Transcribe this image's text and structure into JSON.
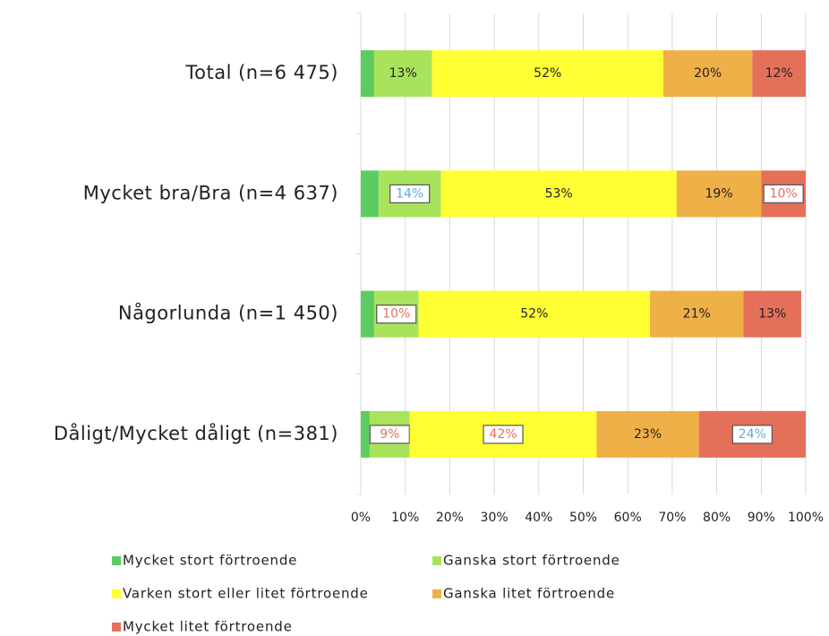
{
  "chart_data": {
    "type": "stacked_barh",
    "categories": [
      "Total (n=6 475)",
      "Mycket bra/Bra (n=4 637)",
      "Någorlunda (n=1 450)",
      "Dåligt/Mycket dåligt (n=381)"
    ],
    "series": [
      {
        "name": "Mycket stort förtroende",
        "color": "#5ccb61",
        "values": [
          3,
          4,
          3,
          2
        ]
      },
      {
        "name": "Ganska stort förtroende",
        "color": "#a9e35b",
        "values": [
          13,
          14,
          10,
          9
        ],
        "value_labels": [
          "13%",
          "14%",
          "10%",
          "9%"
        ],
        "label_colors": [
          null,
          "#5aaed8",
          "#e5705a",
          "#e5705a"
        ]
      },
      {
        "name": "Varken stort eller litet förtroende",
        "color": "#ffff33",
        "values": [
          52,
          53,
          52,
          42
        ],
        "value_labels": [
          "52%",
          "53%",
          "52%",
          "42%"
        ],
        "label_colors": [
          null,
          null,
          null,
          "#e5705a"
        ]
      },
      {
        "name": "Ganska litet förtroende",
        "color": "#f0b048",
        "values": [
          20,
          19,
          21,
          23
        ],
        "value_labels": [
          "20%",
          "19%",
          "21%",
          "23%"
        ],
        "label_colors": [
          null,
          null,
          null,
          null
        ]
      },
      {
        "name": "Mycket litet förtroende",
        "color": "#e5705a",
        "values": [
          12,
          10,
          13,
          24
        ],
        "value_labels": [
          "12%",
          "10%",
          "13%",
          "24%"
        ],
        "label_colors": [
          null,
          "#e5705a",
          null,
          "#5aaed8"
        ]
      }
    ],
    "xlim": [
      0,
      100
    ],
    "xticks": [
      {
        "value": 0,
        "label": "0%"
      },
      {
        "value": 10,
        "label": "10%"
      },
      {
        "value": 20,
        "label": "20%"
      },
      {
        "value": 30,
        "label": "30%"
      },
      {
        "value": 40,
        "label": "40%"
      },
      {
        "value": 50,
        "label": "50%"
      },
      {
        "value": 60,
        "label": "60%"
      },
      {
        "value": 70,
        "label": "70%"
      },
      {
        "value": 80,
        "label": "80%"
      },
      {
        "value": 90,
        "label": "90%"
      },
      {
        "value": 100,
        "label": "100%"
      }
    ],
    "grid": true,
    "legend": "bottom"
  }
}
